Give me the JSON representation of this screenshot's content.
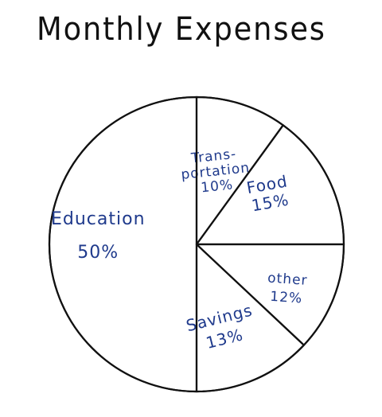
{
  "colors": {
    "outline": "#111111",
    "label": "#1f3a8c",
    "background": "#ffffff"
  },
  "chart_data": {
    "type": "pie",
    "title": "Monthly Expenses",
    "start_angle": "12 o'clock, clockwise",
    "slices": [
      {
        "label": "Trans-\nportation",
        "percent_text": "10%",
        "value": 10
      },
      {
        "label": "Food",
        "percent_text": "15%",
        "value": 15
      },
      {
        "label": "other",
        "percent_text": "12%",
        "value": 12
      },
      {
        "label": "Savings",
        "percent_text": "13%",
        "value": 13
      },
      {
        "label": "Education",
        "percent_text": "50%",
        "value": 50
      }
    ]
  }
}
